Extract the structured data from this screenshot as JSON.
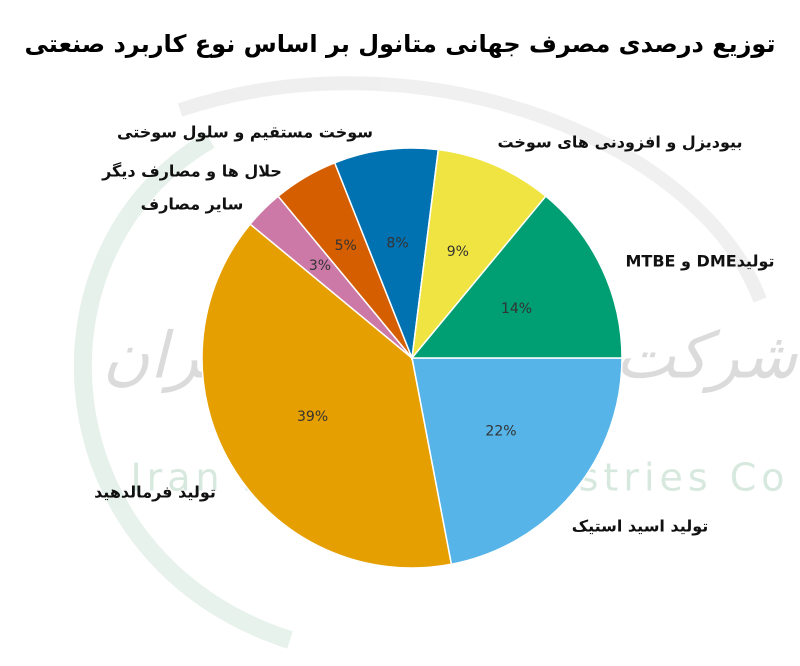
{
  "chart_data": {
    "type": "pie",
    "title": "توزیع درصدی مصرف جهانی متانول بر اساس نوع کاربرد صنعتی",
    "watermark": [
      "شرکت صنایع متانول ایران",
      "Iran Methanol Industries Co"
    ],
    "categories": [
      "تولید اسید استیک",
      "تولید فرمالدهید",
      "سایر مصارف",
      "حلال ها و مصارف دیگر",
      "سوخت مستقیم و سلول سوختی",
      "بیودیزل و افزودنی های سوخت",
      "تولیدDME و MTBE"
    ],
    "values": [
      22,
      39,
      3,
      5,
      8,
      9,
      14
    ],
    "value_labels": [
      "22%",
      "39%",
      "3%",
      "5%",
      "8%",
      "9%",
      "14%"
    ],
    "colors": [
      "#56b4e9",
      "#e69f00",
      "#cc79a7",
      "#d55e00",
      "#0072b2",
      "#f0e442",
      "#009e73"
    ]
  }
}
